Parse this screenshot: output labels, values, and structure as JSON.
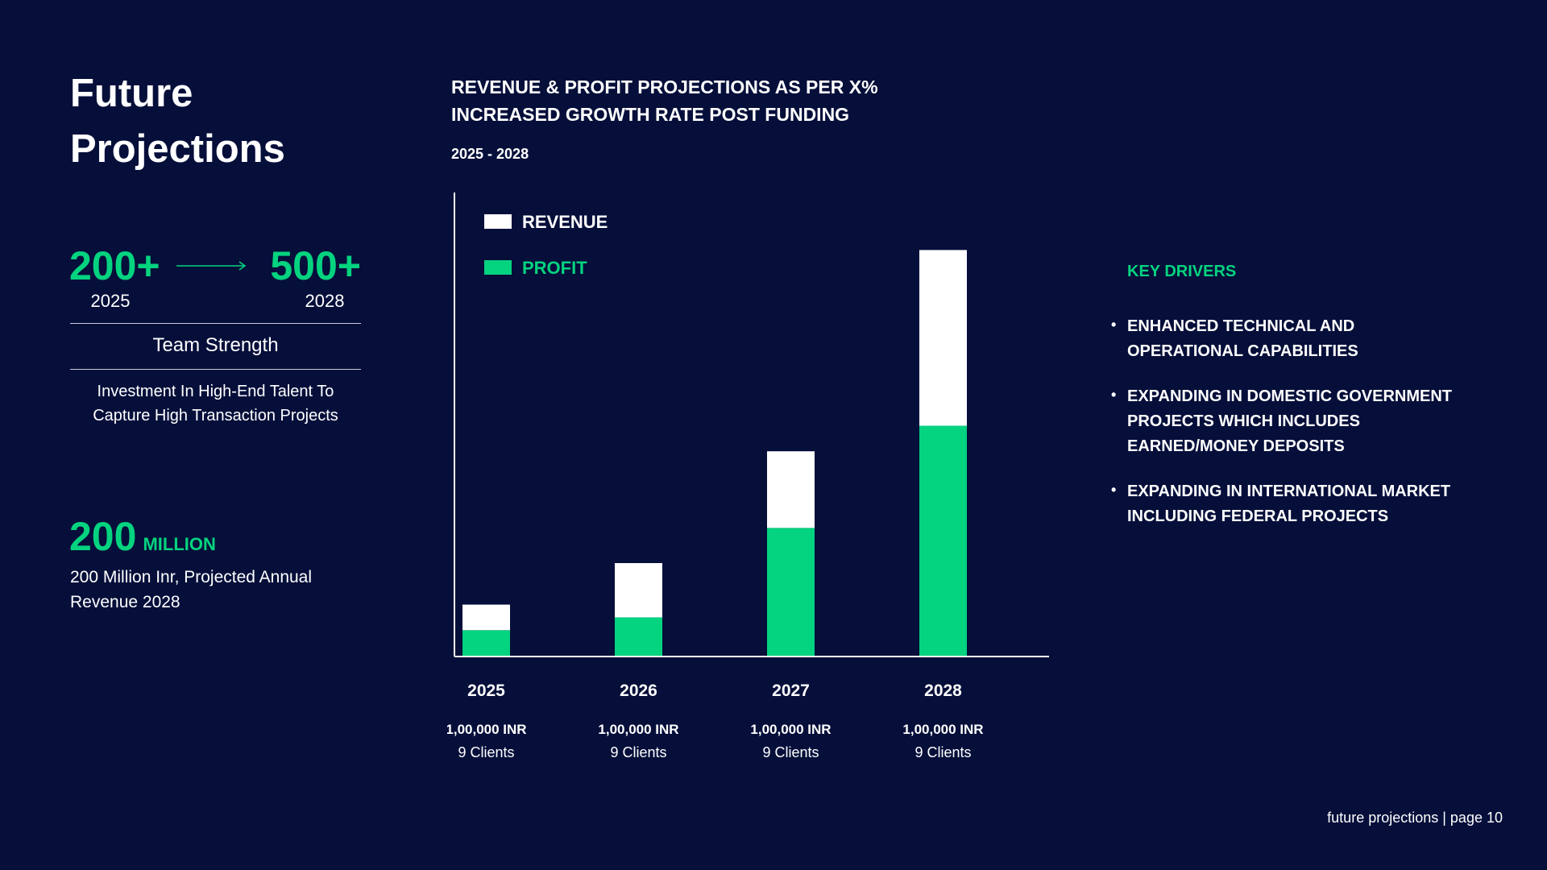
{
  "left": {
    "title": "Future Projections",
    "team": {
      "from_value": "200+",
      "to_value": "500+",
      "from_year": "2025",
      "to_year": "2028",
      "label": "Team Strength",
      "description": "Investment In High-End Talent To Capture High Transaction Projects"
    },
    "revenue": {
      "value": "200",
      "unit": "MILLION",
      "description": "200 Million Inr, Projected Annual Revenue 2028"
    }
  },
  "colors": {
    "background": "#060f3a",
    "accent": "#04d37f",
    "revenue": "#ffffff",
    "profit": "#04d37f"
  },
  "chart_data": {
    "type": "bar",
    "stacked": true,
    "title": "REVENUE & PROFIT PROJECTIONS AS PER X% INCREASED GROWTH RATE POST FUNDING",
    "subtitle": "2025 - 2028",
    "categories": [
      "2025",
      "2026",
      "2027",
      "2028"
    ],
    "category_details": [
      {
        "amount": "1,00,000 INR",
        "clients": "9 Clients"
      },
      {
        "amount": "1,00,000 INR",
        "clients": "9 Clients"
      },
      {
        "amount": "1,00,000 INR",
        "clients": "9 Clients"
      },
      {
        "amount": "1,00,000 INR",
        "clients": "9 Clients"
      }
    ],
    "series": [
      {
        "name": "PROFIT",
        "color": "#04d37f",
        "values": [
          8,
          12,
          40,
          72
        ]
      },
      {
        "name": "REVENUE",
        "color": "#ffffff",
        "values": [
          8,
          17,
          24,
          55
        ]
      }
    ],
    "legend": [
      {
        "name": "REVENUE",
        "color": "#ffffff"
      },
      {
        "name": "PROFIT",
        "color": "#04d37f"
      }
    ],
    "legend_position": "top-left",
    "ylim": [
      0,
      145
    ],
    "grid": false,
    "axes_lines": true
  },
  "key_drivers": {
    "title": "KEY DRIVERS",
    "items": [
      "ENHANCED TECHNICAL AND OPERATIONAL CAPABILITIES",
      "EXPANDING IN DOMESTIC GOVERNMENT PROJECTS WHICH INCLUDES EARNED/MONEY DEPOSITS",
      "EXPANDING IN INTERNATIONAL MARKET INCLUDING FEDERAL PROJECTS"
    ]
  },
  "footer": "future projections | page 10"
}
